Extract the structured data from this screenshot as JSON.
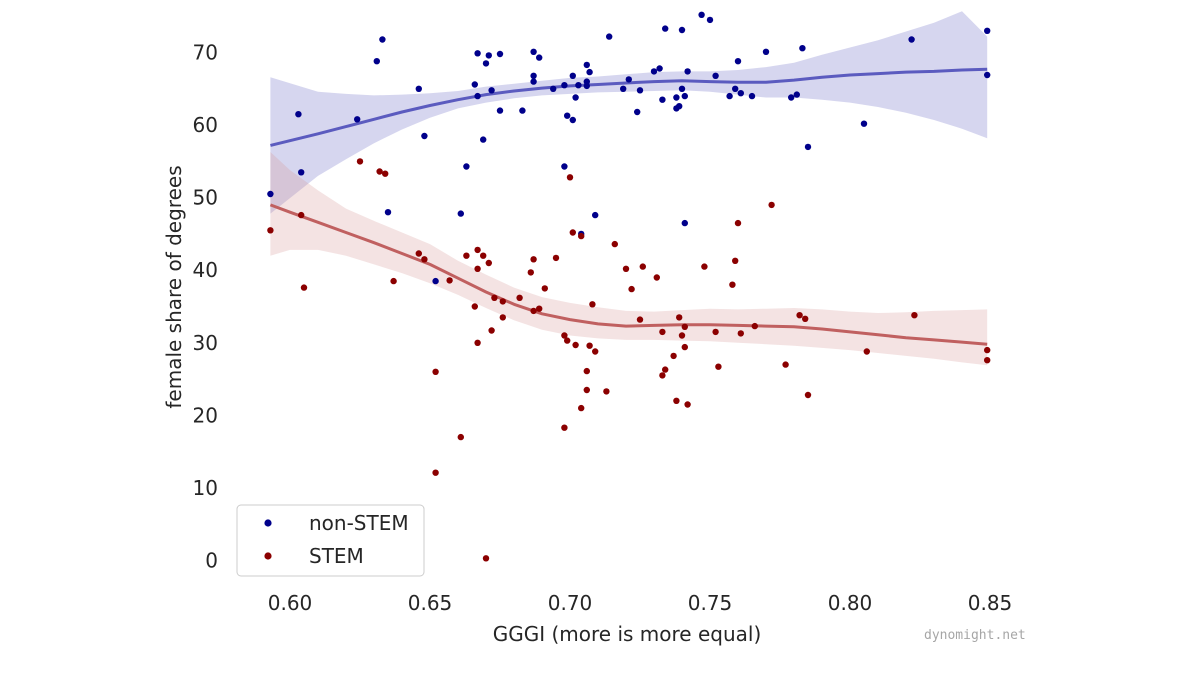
{
  "chart_data": {
    "type": "scatter",
    "xlabel": "GGGI (more is more equal)",
    "ylabel": "female share of degrees",
    "xlim": [
      0.585,
      0.855
    ],
    "ylim": [
      -2,
      76
    ],
    "xticks": [
      0.6,
      0.65,
      0.7,
      0.75,
      0.8,
      0.85
    ],
    "xtick_labels": [
      "0.60",
      "0.65",
      "0.70",
      "0.75",
      "0.80",
      "0.85"
    ],
    "yticks": [
      0,
      10,
      20,
      30,
      40,
      50,
      60,
      70
    ],
    "ytick_labels": [
      "0",
      "10",
      "20",
      "30",
      "40",
      "50",
      "60",
      "70"
    ],
    "grid": false,
    "legend_position": "bottom-left",
    "series": [
      {
        "name": "non-STEM",
        "color": "#00008b",
        "band_color": "#6d6dc4",
        "line_color": "#5b5bbf",
        "points": [
          [
            0.593,
            50.5
          ],
          [
            0.603,
            61.5
          ],
          [
            0.604,
            53.5
          ],
          [
            0.624,
            60.8
          ],
          [
            0.631,
            68.8
          ],
          [
            0.633,
            71.8
          ],
          [
            0.635,
            48
          ],
          [
            0.646,
            65
          ],
          [
            0.648,
            58.5
          ],
          [
            0.652,
            38.5
          ],
          [
            0.661,
            47.8
          ],
          [
            0.663,
            54.3
          ],
          [
            0.666,
            65.6
          ],
          [
            0.667,
            64
          ],
          [
            0.667,
            69.9
          ],
          [
            0.669,
            58
          ],
          [
            0.67,
            68.5
          ],
          [
            0.671,
            69.6
          ],
          [
            0.672,
            64.8
          ],
          [
            0.675,
            62
          ],
          [
            0.675,
            69.8
          ],
          [
            0.683,
            62
          ],
          [
            0.687,
            70.1
          ],
          [
            0.687,
            66.8
          ],
          [
            0.687,
            66
          ],
          [
            0.689,
            69.3
          ],
          [
            0.694,
            65
          ],
          [
            0.698,
            54.3
          ],
          [
            0.698,
            65.5
          ],
          [
            0.699,
            61.3
          ],
          [
            0.701,
            60.7
          ],
          [
            0.701,
            66.8
          ],
          [
            0.702,
            63.8
          ],
          [
            0.703,
            65.5
          ],
          [
            0.704,
            45
          ],
          [
            0.706,
            68.3
          ],
          [
            0.706,
            66
          ],
          [
            0.706,
            65.4
          ],
          [
            0.707,
            67.3
          ],
          [
            0.709,
            47.6
          ],
          [
            0.714,
            72.2
          ],
          [
            0.719,
            65
          ],
          [
            0.721,
            66.3
          ],
          [
            0.724,
            61.8
          ],
          [
            0.725,
            64.8
          ],
          [
            0.73,
            67.4
          ],
          [
            0.732,
            67.8
          ],
          [
            0.733,
            63.5
          ],
          [
            0.734,
            73.3
          ],
          [
            0.738,
            63.8
          ],
          [
            0.738,
            62.3
          ],
          [
            0.739,
            62.6
          ],
          [
            0.74,
            73.1
          ],
          [
            0.74,
            65
          ],
          [
            0.741,
            64
          ],
          [
            0.741,
            46.5
          ],
          [
            0.742,
            67.4
          ],
          [
            0.747,
            75.2
          ],
          [
            0.75,
            74.5
          ],
          [
            0.752,
            66.8
          ],
          [
            0.757,
            64
          ],
          [
            0.759,
            65
          ],
          [
            0.76,
            68.8
          ],
          [
            0.761,
            64.4
          ],
          [
            0.765,
            64
          ],
          [
            0.77,
            70.1
          ],
          [
            0.779,
            63.8
          ],
          [
            0.781,
            64.2
          ],
          [
            0.783,
            70.6
          ],
          [
            0.785,
            57
          ],
          [
            0.805,
            60.2
          ],
          [
            0.822,
            71.8
          ],
          [
            0.849,
            73
          ],
          [
            0.849,
            66.9
          ]
        ],
        "fit_x": [
          0.593,
          0.61,
          0.62,
          0.63,
          0.64,
          0.65,
          0.66,
          0.67,
          0.68,
          0.69,
          0.7,
          0.71,
          0.72,
          0.73,
          0.74,
          0.75,
          0.76,
          0.77,
          0.78,
          0.79,
          0.8,
          0.81,
          0.82,
          0.83,
          0.84,
          0.849
        ],
        "fit_y": [
          57.2,
          58.8,
          59.8,
          60.8,
          61.8,
          62.7,
          63.5,
          64.2,
          64.7,
          65.1,
          65.4,
          65.6,
          65.8,
          66.0,
          66.1,
          66.0,
          65.9,
          65.9,
          66.2,
          66.6,
          66.9,
          67.1,
          67.3,
          67.4,
          67.6,
          67.7
        ],
        "band_lower": [
          47.8,
          53.0,
          55.3,
          57.5,
          59.4,
          61.0,
          62.3,
          63.1,
          63.7,
          64.1,
          64.3,
          64.5,
          64.6,
          64.7,
          64.8,
          64.6,
          64.2,
          63.8,
          63.8,
          63.5,
          63.1,
          62.5,
          61.7,
          60.7,
          59.5,
          58.2
        ],
        "band_upper": [
          66.6,
          64.6,
          64.3,
          64.1,
          64.2,
          64.4,
          64.7,
          65.3,
          65.7,
          66.1,
          66.5,
          66.7,
          67.0,
          67.3,
          67.4,
          67.4,
          67.6,
          68.0,
          68.6,
          69.7,
          70.7,
          71.7,
          72.9,
          74.1,
          75.7,
          72.2
        ]
      },
      {
        "name": "STEM",
        "color": "#8b0000",
        "band_color": "#d99a9a",
        "line_color": "#c06060",
        "points": [
          [
            0.593,
            45.5
          ],
          [
            0.604,
            47.6
          ],
          [
            0.605,
            37.6
          ],
          [
            0.625,
            55
          ],
          [
            0.632,
            53.6
          ],
          [
            0.634,
            53.3
          ],
          [
            0.637,
            38.5
          ],
          [
            0.646,
            42.3
          ],
          [
            0.648,
            41.5
          ],
          [
            0.652,
            26
          ],
          [
            0.652,
            12.1
          ],
          [
            0.657,
            38.6
          ],
          [
            0.661,
            17
          ],
          [
            0.663,
            42
          ],
          [
            0.666,
            35
          ],
          [
            0.667,
            40.2
          ],
          [
            0.667,
            42.8
          ],
          [
            0.667,
            30
          ],
          [
            0.669,
            42
          ],
          [
            0.67,
            0.3
          ],
          [
            0.671,
            41
          ],
          [
            0.672,
            31.7
          ],
          [
            0.673,
            36.2
          ],
          [
            0.676,
            33.5
          ],
          [
            0.676,
            35.7
          ],
          [
            0.682,
            36.2
          ],
          [
            0.686,
            39.7
          ],
          [
            0.687,
            41.5
          ],
          [
            0.687,
            34.4
          ],
          [
            0.689,
            34.7
          ],
          [
            0.691,
            37.5
          ],
          [
            0.695,
            41.7
          ],
          [
            0.698,
            18.3
          ],
          [
            0.698,
            31
          ],
          [
            0.699,
            30.3
          ],
          [
            0.7,
            52.8
          ],
          [
            0.701,
            45.2
          ],
          [
            0.702,
            29.7
          ],
          [
            0.704,
            44.7
          ],
          [
            0.704,
            21
          ],
          [
            0.706,
            23.5
          ],
          [
            0.706,
            26.1
          ],
          [
            0.707,
            29.6
          ],
          [
            0.708,
            35.3
          ],
          [
            0.709,
            28.8
          ],
          [
            0.713,
            23.3
          ],
          [
            0.716,
            43.6
          ],
          [
            0.72,
            40.2
          ],
          [
            0.722,
            37.4
          ],
          [
            0.725,
            33.2
          ],
          [
            0.726,
            40.5
          ],
          [
            0.731,
            39
          ],
          [
            0.733,
            31.5
          ],
          [
            0.733,
            25.5
          ],
          [
            0.734,
            26.3
          ],
          [
            0.737,
            28.2
          ],
          [
            0.738,
            22
          ],
          [
            0.739,
            33.5
          ],
          [
            0.74,
            31
          ],
          [
            0.741,
            32.2
          ],
          [
            0.741,
            29.4
          ],
          [
            0.742,
            21.5
          ],
          [
            0.748,
            40.5
          ],
          [
            0.752,
            31.5
          ],
          [
            0.753,
            26.7
          ],
          [
            0.758,
            38
          ],
          [
            0.759,
            41.3
          ],
          [
            0.76,
            46.5
          ],
          [
            0.761,
            31.3
          ],
          [
            0.766,
            32.3
          ],
          [
            0.772,
            49
          ],
          [
            0.777,
            27
          ],
          [
            0.782,
            33.8
          ],
          [
            0.784,
            33.3
          ],
          [
            0.785,
            22.8
          ],
          [
            0.806,
            28.8
          ],
          [
            0.823,
            33.8
          ],
          [
            0.849,
            29
          ],
          [
            0.849,
            27.6
          ]
        ],
        "fit_x": [
          0.593,
          0.6,
          0.61,
          0.62,
          0.63,
          0.64,
          0.65,
          0.66,
          0.67,
          0.68,
          0.69,
          0.7,
          0.71,
          0.72,
          0.73,
          0.74,
          0.75,
          0.76,
          0.77,
          0.78,
          0.79,
          0.8,
          0.81,
          0.82,
          0.83,
          0.84,
          0.849
        ],
        "fit_y": [
          49.0,
          48.0,
          46.6,
          45.2,
          43.8,
          42.3,
          40.8,
          38.9,
          37.0,
          35.3,
          34.0,
          33.2,
          32.6,
          32.3,
          32.4,
          32.5,
          32.5,
          32.4,
          32.3,
          32.2,
          31.9,
          31.5,
          31.1,
          30.7,
          30.4,
          30.1,
          29.8
        ],
        "band_lower": [
          42.0,
          42.8,
          42.8,
          42.0,
          40.8,
          39.6,
          38.2,
          36.6,
          34.8,
          33.1,
          31.8,
          31.0,
          30.6,
          30.4,
          30.4,
          30.3,
          30.2,
          30.0,
          29.8,
          29.6,
          29.3,
          29.0,
          28.6,
          28.2,
          27.8,
          27.3,
          26.9
        ],
        "band_upper": [
          56.3,
          53.8,
          51.0,
          48.5,
          46.8,
          45.2,
          43.6,
          41.3,
          39.4,
          37.6,
          36.3,
          35.5,
          34.9,
          34.4,
          34.3,
          34.5,
          34.7,
          34.6,
          34.7,
          34.8,
          34.6,
          34.3,
          34.1,
          34.2,
          34.4,
          34.5,
          34.6
        ]
      }
    ]
  },
  "watermark": "dynomight.net"
}
